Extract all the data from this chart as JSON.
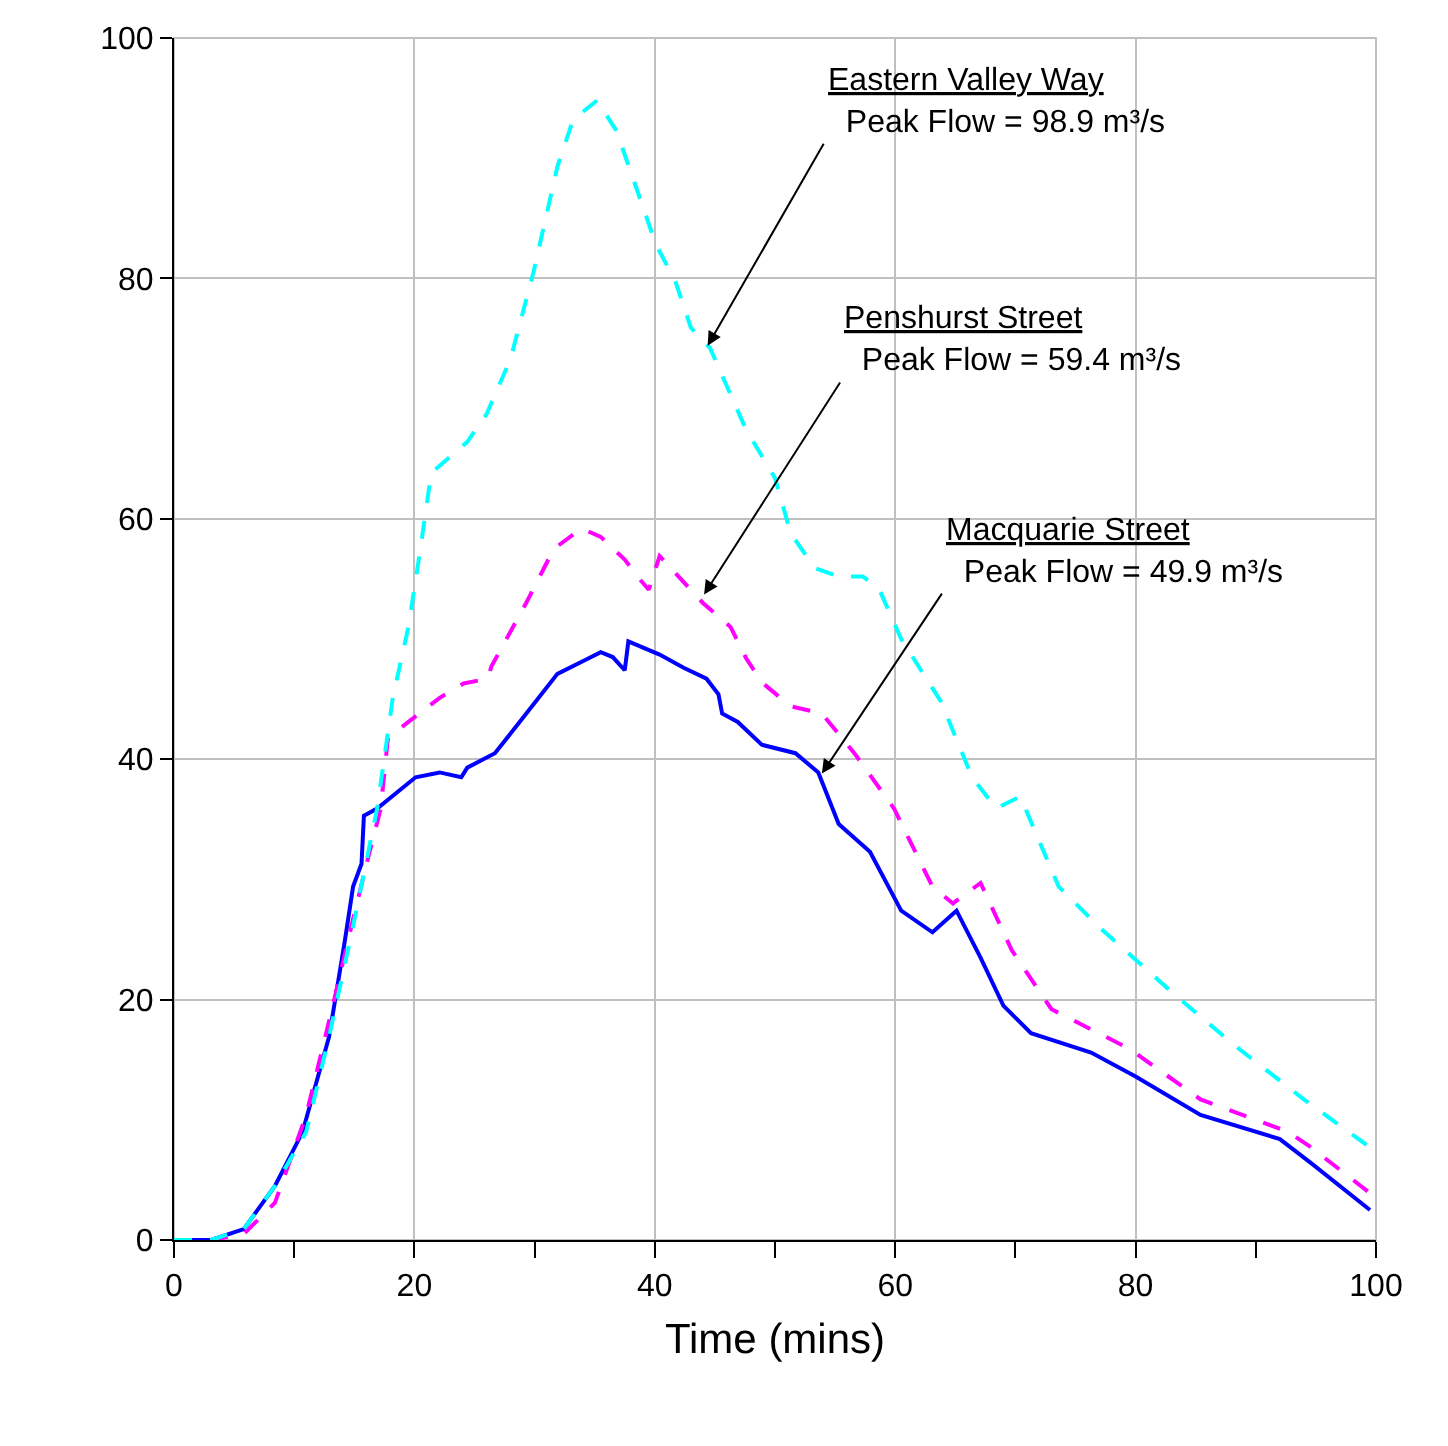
{
  "chart_data": {
    "type": "line",
    "xlabel": "Time (mins)",
    "xlim": [
      0,
      100
    ],
    "ylim": [
      0,
      100
    ],
    "xticks": [
      0,
      {
        "value": 10,
        "label": null
      },
      20,
      {
        "value": 30,
        "label": null
      },
      40,
      {
        "value": 50,
        "label": null
      },
      60,
      {
        "value": 70,
        "label": null
      },
      80,
      {
        "value": 90,
        "label": null
      },
      100
    ],
    "yticks": [
      0,
      20,
      40,
      60,
      80,
      100
    ],
    "grid": true,
    "marker": "none",
    "series": [
      {
        "color": "#0000ff",
        "line_style": "solid",
        "x": [
          0,
          3.1,
          5.8,
          8.4,
          10.7,
          12.9,
          14.2,
          14.9,
          15.6,
          15.8,
          16.9,
          20.1,
          22.1,
          23.9,
          24.4,
          26.7,
          29.0,
          31.9,
          34.5,
          35.5,
          36.5,
          37.5,
          37.8,
          40.4,
          42.4,
          44.3,
          45.3,
          45.6,
          46.9,
          48.9,
          51.7,
          53.6,
          55.3,
          57.9,
          60.5,
          63.1,
          65.1,
          67.1,
          69.0,
          71.3,
          76.3,
          80,
          85.4,
          92,
          94.6,
          99.5
        ],
        "values": [
          0,
          0,
          0.9,
          4.5,
          9,
          16.9,
          24.8,
          29.4,
          31.3,
          35.3,
          35.9,
          38.5,
          38.9,
          38.5,
          39.3,
          40.5,
          43.4,
          47.1,
          48.4,
          48.9,
          48.5,
          47.4,
          49.8,
          48.7,
          47.6,
          46.7,
          45.4,
          43.8,
          43.1,
          41.2,
          40.5,
          38.9,
          34.6,
          32.3,
          27.4,
          25.6,
          27.4,
          23.5,
          19.5,
          17.2,
          15.6,
          13.6,
          10.4,
          8.4,
          6.4,
          2.5
        ]
      },
      {
        "color": "#ff00ff",
        "line_style": "dashed",
        "x": [
          0,
          3.1,
          5.8,
          8.4,
          11,
          12.9,
          14.9,
          16.2,
          17.2,
          17.8,
          19.5,
          22.1,
          24.1,
          26.1,
          26.4,
          29.3,
          31.6,
          33.9,
          35.5,
          37.5,
          38.8,
          39.5,
          40.4,
          44,
          46.3,
          47.6,
          48.9,
          51.3,
          53.9,
          56.6,
          59.9,
          63.1,
          64.8,
          67.1,
          69.7,
          73,
          79.5,
          85.4,
          92.7,
          94.6,
          99.5
        ],
        "values": [
          0,
          0,
          0.5,
          3.1,
          10.4,
          18.2,
          26.7,
          32,
          35.9,
          41.8,
          43.1,
          45.1,
          46.3,
          46.7,
          47.7,
          53,
          57.5,
          59.2,
          58.5,
          56.6,
          54.9,
          54.1,
          56.9,
          53,
          51,
          48.4,
          46.4,
          44.4,
          43.8,
          40.5,
          35.9,
          29.4,
          28,
          29.7,
          24.1,
          19.2,
          15.9,
          11.7,
          9,
          7.7,
          3.9
        ]
      },
      {
        "color": "#00ffff",
        "line_style": "dashed",
        "x": [
          0,
          3.1,
          5.8,
          8.4,
          11,
          12.9,
          14.9,
          16.9,
          18.2,
          19.5,
          20.5,
          21.4,
          24.4,
          26,
          28,
          29.9,
          31.9,
          33.2,
          35.2,
          36.8,
          39.1,
          40.1,
          41.7,
          43,
          44.6,
          47.6,
          50,
          51.3,
          53.3,
          55.3,
          57.3,
          58.6,
          60.5,
          63.8,
          66.4,
          68.4,
          70.4,
          73.6,
          76.9,
          82.8,
          88.1,
          94,
          99.5
        ],
        "values": [
          0,
          0,
          0.9,
          4.5,
          9,
          16.9,
          26.1,
          35.9,
          45.1,
          51,
          57.5,
          63.8,
          66.4,
          68.7,
          73.3,
          80.5,
          89.3,
          93.2,
          94.8,
          92.3,
          85.7,
          82.8,
          79.8,
          75.9,
          74.2,
          67.4,
          63.4,
          58.8,
          55.9,
          55.2,
          55.2,
          54.3,
          50,
          44.8,
          38.5,
          35.9,
          36.9,
          29.4,
          26.1,
          20.8,
          16.3,
          11.7,
          7.7
        ]
      }
    ],
    "annotations": [
      {
        "text": "Eastern Valley Way\nPeak Flow = 98.9 m³/s",
        "x": 44.4,
        "y": 74.4
      },
      {
        "text": "Penshurst Street\nPeak Flow = 59.4 m³/s",
        "x": 44.1,
        "y": 53.7
      },
      {
        "text": "Macquarie Street\nPeak Flow = 49.9 m³/s",
        "x": 53.9,
        "y": 38.8
      }
    ]
  }
}
